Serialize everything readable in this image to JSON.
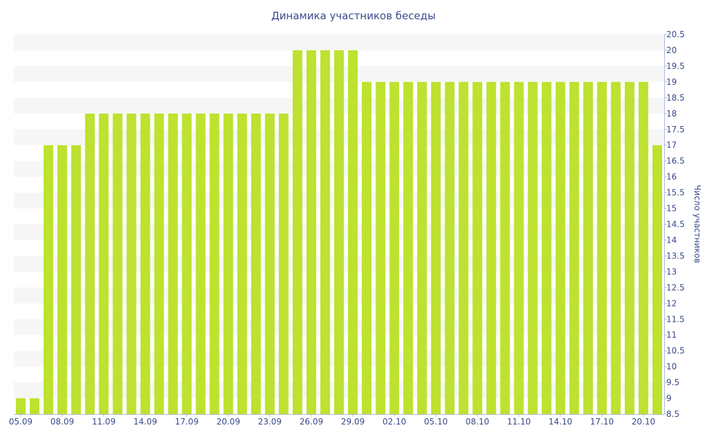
{
  "chart_data": {
    "type": "bar",
    "title": "Динамика участников беседы",
    "xlabel": "",
    "ylabel": "Число участников",
    "ylim": [
      8.5,
      20.5
    ],
    "y_tick_step": 0.5,
    "y_axis_position": "right",
    "bar_color": "#bde22f",
    "band_color": "#f6f6f6",
    "text_color": "#3a4a8a",
    "categories": [
      "05.09",
      "06.09",
      "07.09",
      "08.09",
      "09.09",
      "10.09",
      "11.09",
      "12.09",
      "13.09",
      "14.09",
      "15.09",
      "16.09",
      "17.09",
      "18.09",
      "19.09",
      "20.09",
      "21.09",
      "22.09",
      "23.09",
      "24.09",
      "25.09",
      "26.09",
      "27.09",
      "28.09",
      "29.09",
      "30.09",
      "01.10",
      "02.10",
      "03.10",
      "04.10",
      "05.10",
      "06.10",
      "07.10",
      "08.10",
      "09.10",
      "10.10",
      "11.10",
      "12.10",
      "13.10",
      "14.10",
      "15.10",
      "16.10",
      "17.10",
      "18.10",
      "19.10",
      "20.10",
      "21.10"
    ],
    "values": [
      9,
      9,
      17,
      17,
      17,
      18,
      18,
      18,
      18,
      18,
      18,
      18,
      18,
      18,
      18,
      18,
      18,
      18,
      18,
      18,
      20,
      20,
      20,
      20,
      20,
      19,
      19,
      19,
      19,
      19,
      19,
      19,
      19,
      19,
      19,
      19,
      19,
      19,
      19,
      19,
      19,
      19,
      19,
      19,
      19,
      19,
      17
    ],
    "x_tick_labels": [
      "05.09",
      "08.09",
      "11.09",
      "14.09",
      "17.09",
      "20.09",
      "23.09",
      "26.09",
      "29.09",
      "02.10",
      "05.10",
      "08.10",
      "11.10",
      "14.10",
      "17.10",
      "20.10"
    ]
  }
}
